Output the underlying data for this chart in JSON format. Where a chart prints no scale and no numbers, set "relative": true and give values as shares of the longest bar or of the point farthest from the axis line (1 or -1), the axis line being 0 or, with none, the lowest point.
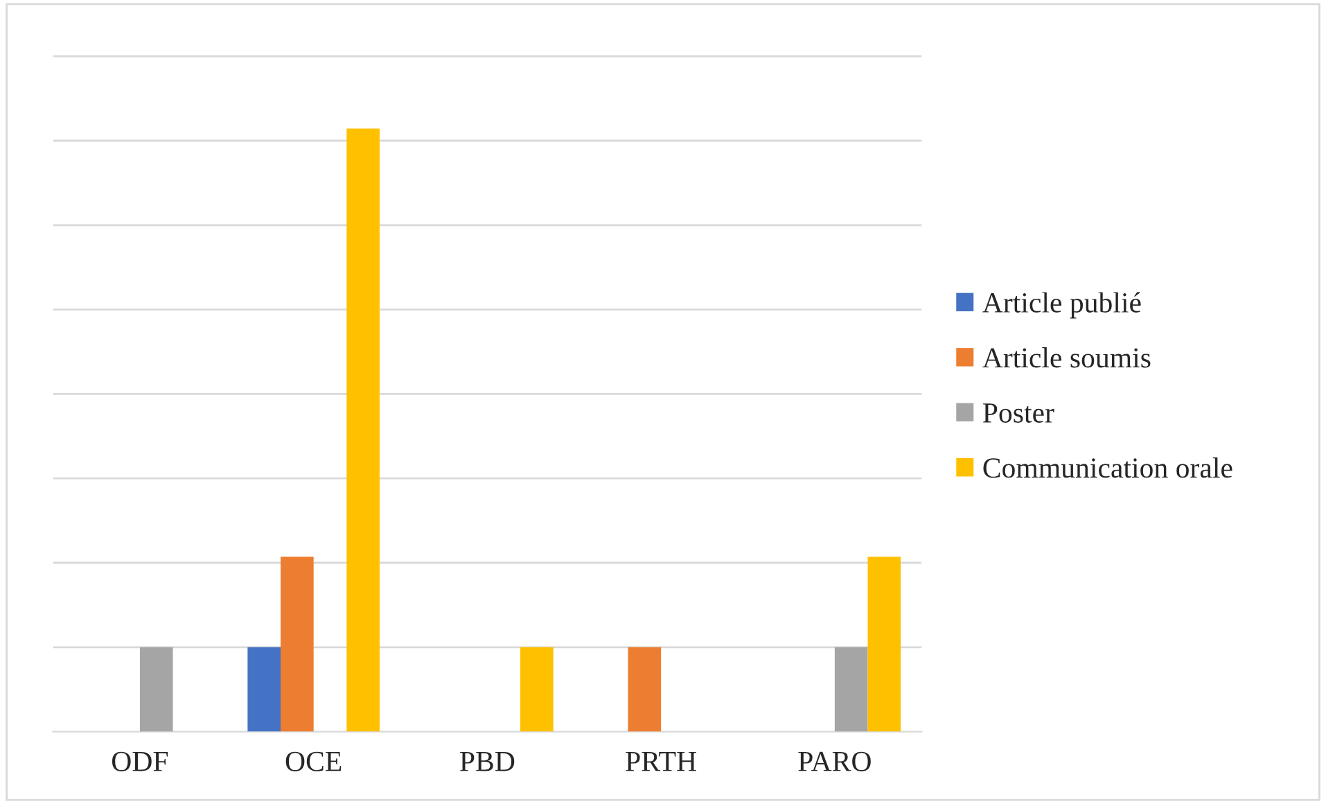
{
  "chart_data": {
    "type": "bar",
    "relative": true,
    "categories": [
      "ODF",
      "OCE",
      "PBD",
      "PRTH",
      "PARO"
    ],
    "series": [
      {
        "name": "Article publié",
        "color": "#4472c4",
        "values": [
          null,
          0.14,
          null,
          null,
          null
        ]
      },
      {
        "name": "Article soumis",
        "color": "#ed7d31",
        "values": [
          null,
          0.29,
          null,
          0.14,
          null
        ]
      },
      {
        "name": "Poster",
        "color": "#a5a5a5",
        "values": [
          0.14,
          null,
          null,
          null,
          0.14
        ]
      },
      {
        "name": "Communication orale",
        "color": "#ffc000",
        "values": [
          null,
          1,
          0.14,
          null,
          0.29
        ]
      }
    ],
    "grid": "y",
    "legend": "right"
  }
}
